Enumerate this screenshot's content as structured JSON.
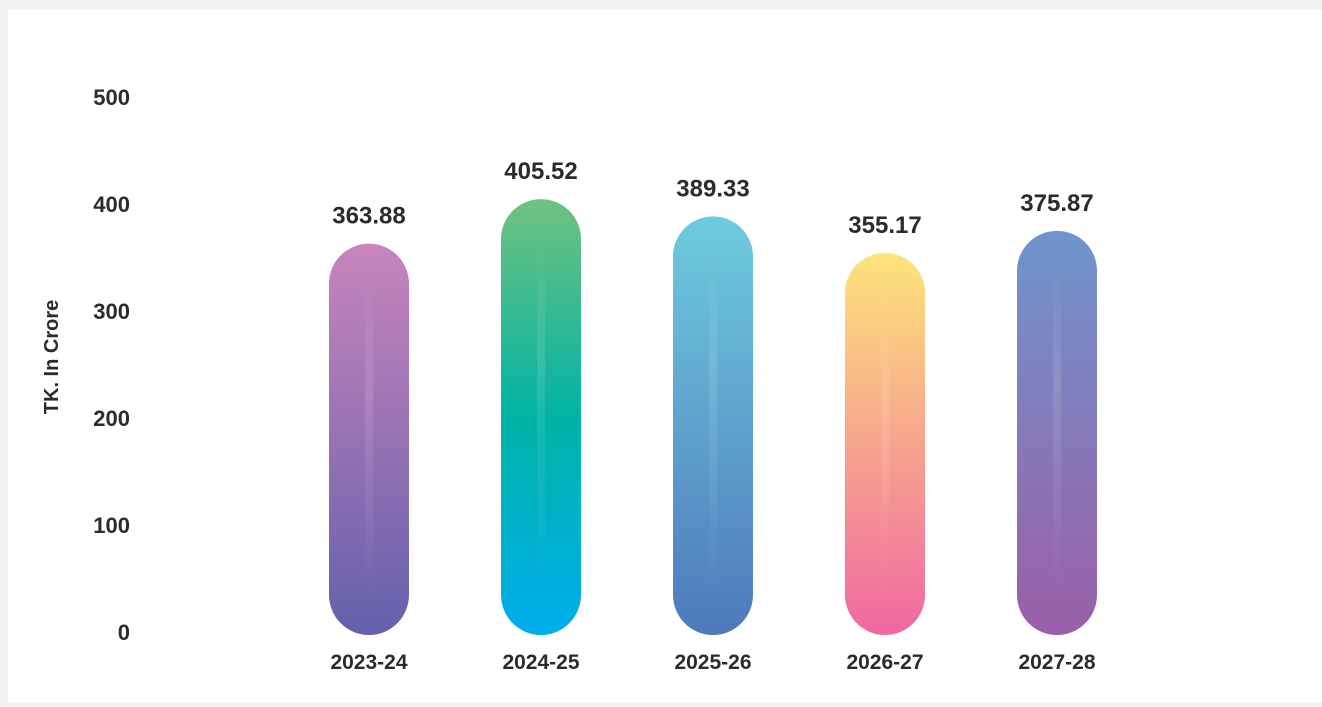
{
  "chart_data": {
    "type": "bar",
    "title": "",
    "xlabel": "",
    "ylabel": "TK. In Crore",
    "ylim": [
      0,
      500
    ],
    "yticks": [
      0,
      100,
      200,
      300,
      400,
      500
    ],
    "grid": false,
    "categories": [
      "2023-24",
      "2024-25",
      "2025-26",
      "2026-27",
      "2027-28"
    ],
    "values": [
      363.88,
      405.52,
      389.33,
      355.17,
      375.87
    ],
    "value_labels": [
      "363.88",
      "405.52",
      "389.33",
      "355.17",
      "375.87"
    ],
    "bar_gradients": [
      {
        "top": "#c884bd",
        "bottom": "#6460ac"
      },
      {
        "top": "#70c27e",
        "middle": "#00b3a6",
        "bottom": "#00aeec"
      },
      {
        "top": "#6dcbde",
        "bottom": "#4f79bc"
      },
      {
        "top": "#fde47a",
        "middle": "#f7a48e",
        "bottom": "#f067a3"
      },
      {
        "top": "#6f95cc",
        "bottom": "#9b5ea8"
      }
    ]
  }
}
